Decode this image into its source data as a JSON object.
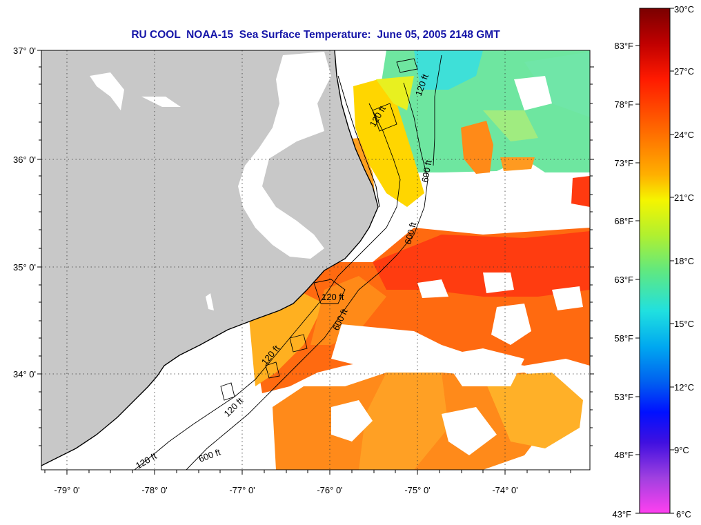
{
  "title": "RU COOL  NOAA-15  Sea Surface Temperature:  June 05, 2005 2148 GMT",
  "latitude_labels": [
    "37° 0'",
    "36° 0'",
    "35° 0'",
    "34° 0'"
  ],
  "longitude_labels": [
    "-79° 0'",
    "-78° 0'",
    "-77° 0'",
    "-76° 0'",
    "-75° 0'",
    "-74° 0'"
  ],
  "isobath_labels": {
    "depth_120": "120 ft",
    "depth_600": "600 ft"
  },
  "colorbar": {
    "celsius_labels": [
      "30°C",
      "27°C",
      "24°C",
      "21°C",
      "18°C",
      "15°C",
      "12°C",
      "9°C",
      "6°C"
    ],
    "fahrenheit_labels": [
      "83°F",
      "78°F",
      "73°F",
      "68°F",
      "63°F",
      "58°F",
      "53°F",
      "48°F",
      "43°F"
    ],
    "colors": [
      "#7a0000",
      "#d40000",
      "#ff2a00",
      "#ff7a00",
      "#ffc000",
      "#f2f200",
      "#b8f020",
      "#60e880",
      "#20e0e0",
      "#00b8f0",
      "#0070f0",
      "#0020ff",
      "#2000e0",
      "#a040e0",
      "#ff40f0"
    ],
    "min_celsius": 6,
    "max_celsius": 30
  },
  "colors": {
    "land": "#c8c8c8",
    "ocean_no_data": "#ffffff",
    "title": "#1515a8",
    "contour": "#000000"
  }
}
